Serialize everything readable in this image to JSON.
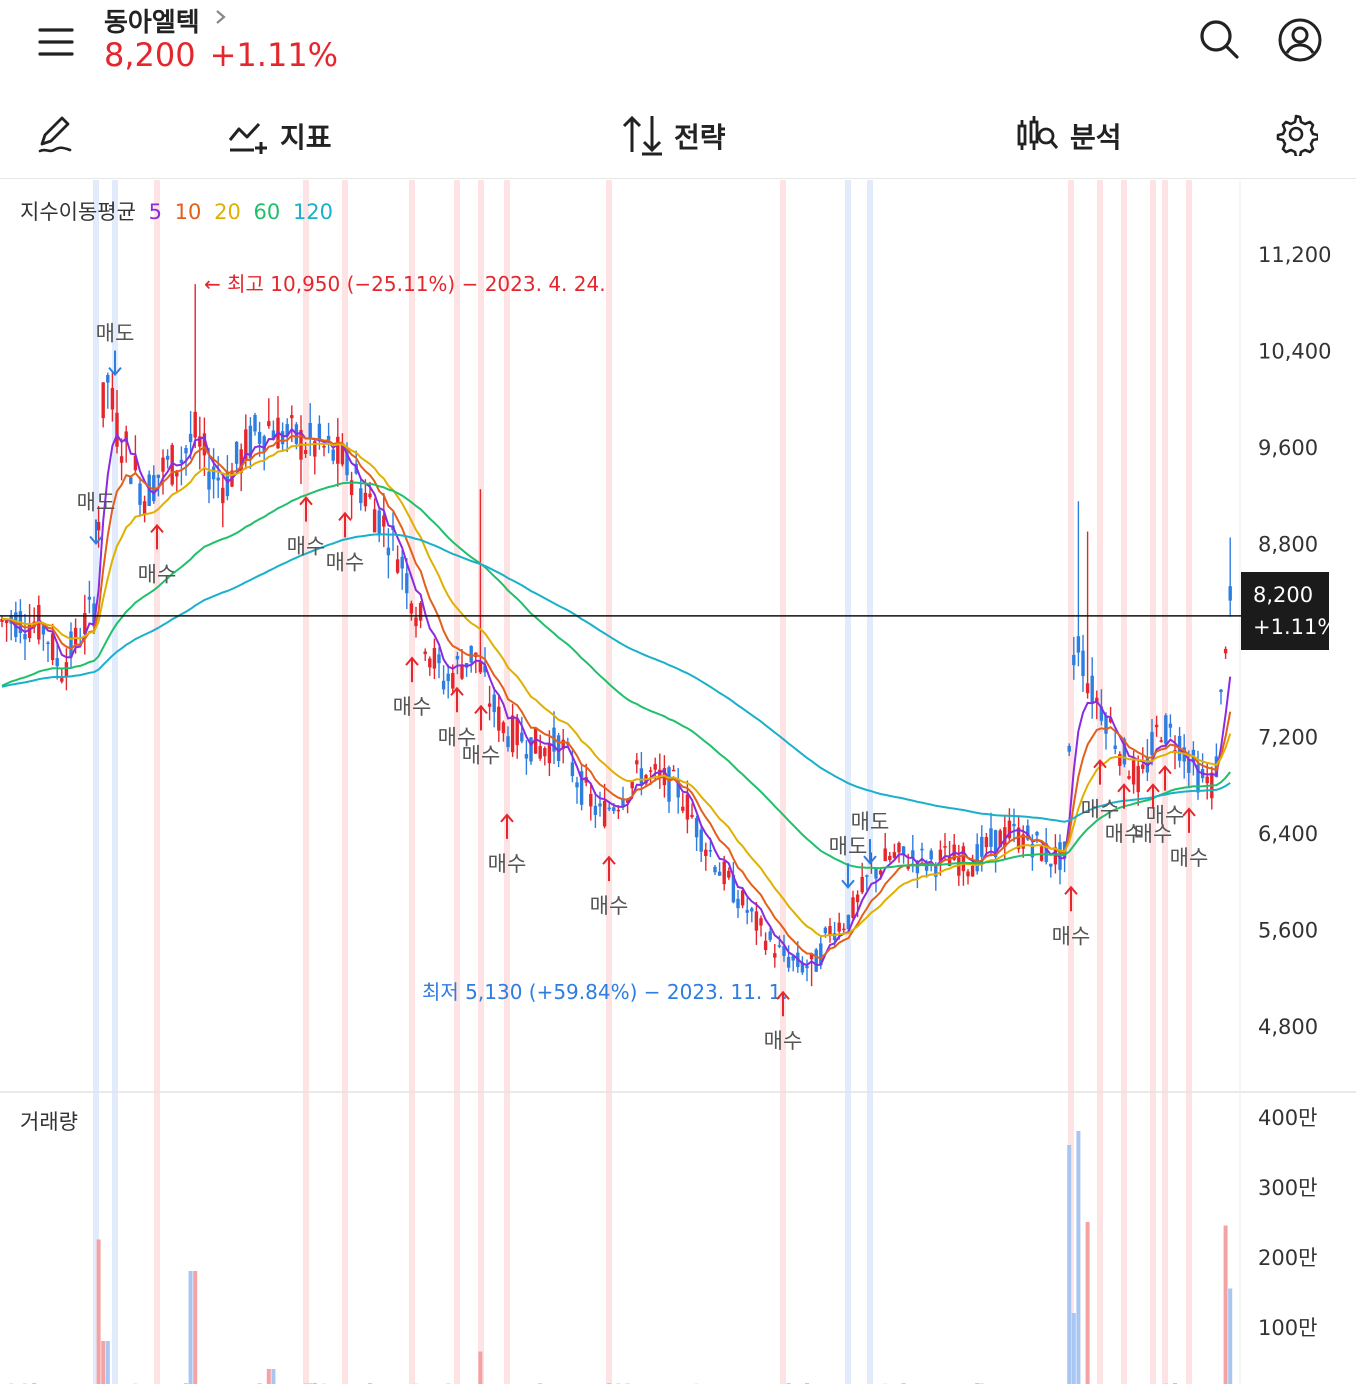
{
  "header": {
    "stock_name": "동아엘텍",
    "price": "8,200",
    "change": "+1.11%"
  },
  "icons": {
    "menu": "menu-icon",
    "search": "search-icon",
    "profile": "user-icon",
    "draw": "pencil-icon",
    "indicator": "indicator-icon",
    "strategy": "strategy-icon",
    "analysis": "analysis-icon",
    "settings": "gear-icon"
  },
  "toolbar": {
    "indicator_label": "지표",
    "strategy_label": "전략",
    "analysis_label": "분석"
  },
  "legend": {
    "title": "지수이동평균",
    "periods": [
      {
        "label": "5",
        "color": "#8a2be2"
      },
      {
        "label": "10",
        "color": "#e3601b"
      },
      {
        "label": "20",
        "color": "#e0b000"
      },
      {
        "label": "60",
        "color": "#1fc06a"
      },
      {
        "label": "120",
        "color": "#19b0c9"
      }
    ]
  },
  "volume_label": "거래량",
  "colors": {
    "up": "#e5262c",
    "down": "#2e7de0",
    "high_note": "#e5262c",
    "low_note": "#2e7de0"
  },
  "chart_data": {
    "type": "candlestick",
    "indicator": "지수이동평균",
    "ma_periods": [
      5,
      10,
      20,
      60,
      120
    ],
    "y_ticks": [
      "11,200",
      "10,400",
      "9,600",
      "8,800",
      "7,200",
      "6,400",
      "5,600",
      "4,800"
    ],
    "y_tick_values": [
      11200,
      10400,
      9600,
      8800,
      7200,
      6400,
      5600,
      4800
    ],
    "volume_ticks": [
      "400만",
      "300만",
      "200만",
      "100만"
    ],
    "volume_tick_values": [
      4000000,
      3000000,
      2000000,
      1000000
    ],
    "current_price": "8,200",
    "current_change": "+1.11%",
    "current_price_value": 8200,
    "high_note": "← 최고 10,950 (−25.11%) − 2023. 4. 24.",
    "high_value": 10950,
    "low_note": "최저 5,130 (+59.84%) − 2023. 11. 1.",
    "low_value": 5130,
    "close_path": [
      [
        0,
        8150
      ],
      [
        20,
        8180
      ],
      [
        45,
        8100
      ],
      [
        60,
        7750
      ],
      [
        80,
        8050
      ],
      [
        95,
        8300
      ],
      [
        105,
        10300
      ],
      [
        115,
        9800
      ],
      [
        130,
        9500
      ],
      [
        145,
        9200
      ],
      [
        160,
        9400
      ],
      [
        180,
        9500
      ],
      [
        195,
        9700
      ],
      [
        210,
        9400
      ],
      [
        225,
        9300
      ],
      [
        240,
        9500
      ],
      [
        255,
        9700
      ],
      [
        270,
        9800
      ],
      [
        285,
        9700
      ],
      [
        300,
        9650
      ],
      [
        320,
        9600
      ],
      [
        340,
        9500
      ],
      [
        355,
        9350
      ],
      [
        370,
        9150
      ],
      [
        385,
        8950
      ],
      [
        400,
        8700
      ],
      [
        415,
        8300
      ],
      [
        430,
        7900
      ],
      [
        445,
        7650
      ],
      [
        460,
        7800
      ],
      [
        475,
        7900
      ],
      [
        490,
        7500
      ],
      [
        505,
        7250
      ],
      [
        520,
        7200
      ],
      [
        540,
        7100
      ],
      [
        560,
        7150
      ],
      [
        580,
        6800
      ],
      [
        600,
        6550
      ],
      [
        620,
        6700
      ],
      [
        640,
        6900
      ],
      [
        660,
        6850
      ],
      [
        680,
        6750
      ],
      [
        700,
        6400
      ],
      [
        720,
        6100
      ],
      [
        740,
        5850
      ],
      [
        760,
        5600
      ],
      [
        780,
        5400
      ],
      [
        800,
        5300
      ],
      [
        815,
        5300
      ],
      [
        830,
        5600
      ],
      [
        850,
        5700
      ],
      [
        870,
        6050
      ],
      [
        890,
        6200
      ],
      [
        910,
        6200
      ],
      [
        930,
        6150
      ],
      [
        950,
        6200
      ],
      [
        970,
        6150
      ],
      [
        990,
        6300
      ],
      [
        1010,
        6400
      ],
      [
        1030,
        6350
      ],
      [
        1050,
        6200
      ],
      [
        1065,
        6200
      ],
      [
        1075,
        8100
      ],
      [
        1090,
        7600
      ],
      [
        1105,
        7400
      ],
      [
        1120,
        7100
      ],
      [
        1140,
        6800
      ],
      [
        1160,
        7300
      ],
      [
        1180,
        7150
      ],
      [
        1200,
        6850
      ],
      [
        1215,
        6800
      ],
      [
        1228,
        8300
      ],
      [
        1236,
        8200
      ]
    ],
    "signals": [
      {
        "label": "매도",
        "x": 115,
        "value": 10200,
        "dir": "down"
      },
      {
        "label": "매도",
        "x": 96,
        "value": 8800,
        "dir": "down"
      },
      {
        "label": "매수",
        "x": 157,
        "value": 8950,
        "dir": "up"
      },
      {
        "label": "매수",
        "x": 306,
        "value": 9180,
        "dir": "up"
      },
      {
        "label": "매수",
        "x": 345,
        "value": 9050,
        "dir": "up"
      },
      {
        "label": "매수",
        "x": 412,
        "value": 7850,
        "dir": "up"
      },
      {
        "label": "매수",
        "x": 457,
        "value": 7600,
        "dir": "up"
      },
      {
        "label": "매수",
        "x": 481,
        "value": 7450,
        "dir": "up"
      },
      {
        "label": "매수",
        "x": 507,
        "value": 6550,
        "dir": "up"
      },
      {
        "label": "매수",
        "x": 609,
        "value": 6200,
        "dir": "up"
      },
      {
        "label": "매수",
        "x": 783,
        "value": 5080,
        "dir": "up"
      },
      {
        "label": "매도",
        "x": 848,
        "value": 5950,
        "dir": "down"
      },
      {
        "label": "매도",
        "x": 870,
        "value": 6150,
        "dir": "down"
      },
      {
        "label": "매수",
        "x": 1071,
        "value": 5950,
        "dir": "up"
      },
      {
        "label": "매수",
        "x": 1100,
        "value": 7000,
        "dir": "up"
      },
      {
        "label": "매수",
        "x": 1124,
        "value": 6800,
        "dir": "up"
      },
      {
        "label": "매수",
        "x": 1153,
        "value": 6800,
        "dir": "up"
      },
      {
        "label": "매수",
        "x": 1165,
        "value": 6950,
        "dir": "up"
      },
      {
        "label": "매수",
        "x": 1189,
        "value": 6600,
        "dir": "up"
      }
    ]
  }
}
